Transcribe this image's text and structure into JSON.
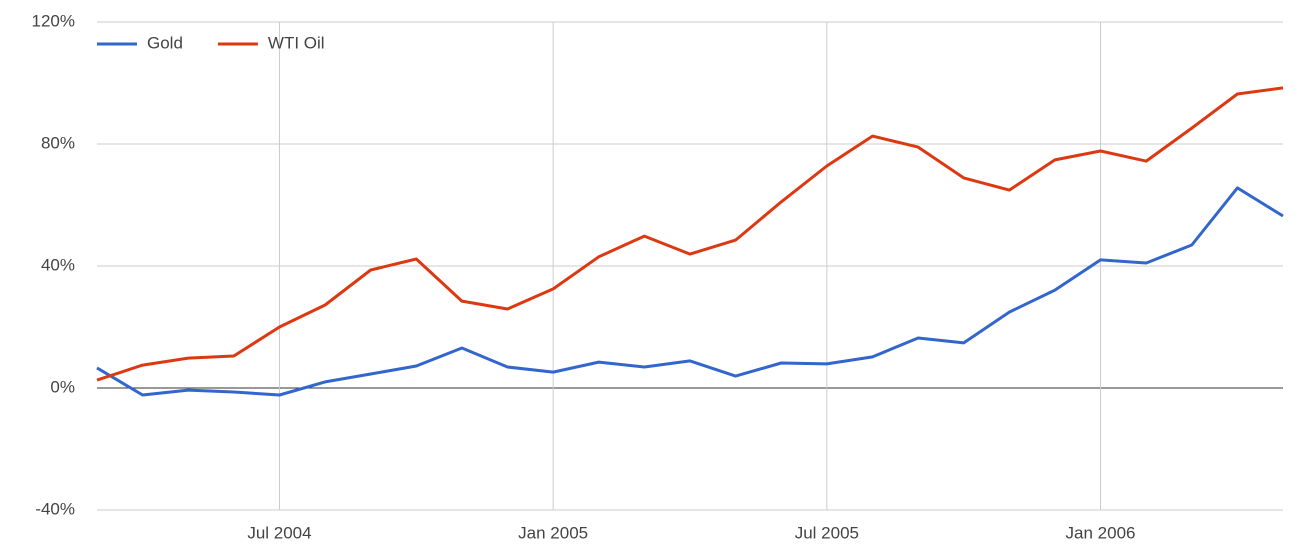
{
  "chart_data": {
    "type": "line",
    "x": [
      "2004-03",
      "2004-04",
      "2004-05",
      "2004-06",
      "2004-07",
      "2004-08",
      "2004-09",
      "2004-10",
      "2004-11",
      "2004-12",
      "2005-01",
      "2005-02",
      "2005-03",
      "2005-04",
      "2005-05",
      "2005-06",
      "2005-07",
      "2005-08",
      "2005-09",
      "2005-10",
      "2005-11",
      "2005-12",
      "2006-01",
      "2006-02",
      "2006-03",
      "2006-04",
      "2006-05"
    ],
    "series": [
      {
        "name": "Gold",
        "color": "#3366cc",
        "values": [
          6.6,
          -2.3,
          -0.7,
          -1.3,
          -2.3,
          2,
          4.6,
          7.2,
          13.1,
          6.9,
          5.2,
          8.5,
          6.9,
          8.9,
          3.9,
          8.2,
          7.9,
          10.2,
          16.4,
          14.8,
          24.9,
          32.1,
          42,
          41,
          46.9,
          65.6,
          56.4
        ]
      },
      {
        "name": "WTI Oil",
        "color": "#dc3912",
        "values": [
          2.6,
          7.5,
          9.8,
          10.5,
          20,
          27.2,
          38.7,
          42.3,
          28.5,
          25.9,
          32.5,
          43,
          49.8,
          43.9,
          48.5,
          61,
          72.8,
          82.6,
          79,
          68.9,
          64.9,
          74.8,
          77.7,
          74.4,
          85.2,
          96.4,
          98.4
        ]
      }
    ],
    "xlim": [
      "2004-03",
      "2006-05"
    ],
    "xticks": [
      {
        "value": "2004-07",
        "label": "Jul 2004"
      },
      {
        "value": "2005-01",
        "label": "Jan 2005"
      },
      {
        "value": "2005-07",
        "label": "Jul 2005"
      },
      {
        "value": "2006-01",
        "label": "Jan 2006"
      }
    ],
    "ylim": [
      -40,
      120
    ],
    "yticks": [
      {
        "value": -40,
        "label": "-40%"
      },
      {
        "value": 0,
        "label": "0%"
      },
      {
        "value": 40,
        "label": "40%"
      },
      {
        "value": 80,
        "label": "80%"
      },
      {
        "value": 120,
        "label": "120%"
      }
    ],
    "grid": true,
    "legend": "top-left"
  }
}
